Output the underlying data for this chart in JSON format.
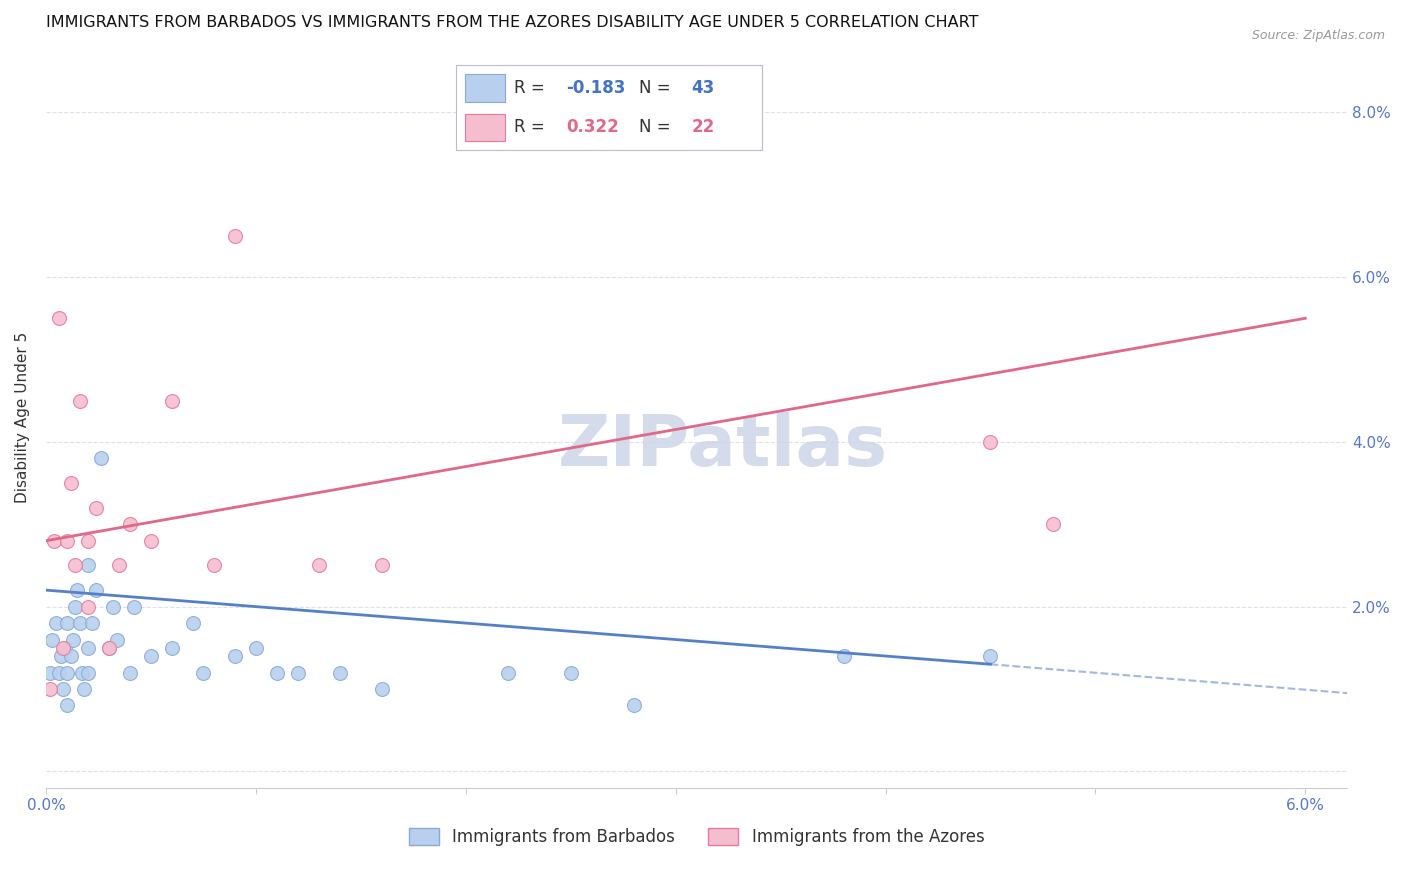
{
  "title": "IMMIGRANTS FROM BARBADOS VS IMMIGRANTS FROM THE AZORES DISABILITY AGE UNDER 5 CORRELATION CHART",
  "source": "Source: ZipAtlas.com",
  "ylabel": "Disability Age Under 5",
  "xlim": [
    0.0,
    0.062
  ],
  "ylim": [
    -0.002,
    0.088
  ],
  "yticks": [
    0.0,
    0.02,
    0.04,
    0.06,
    0.08
  ],
  "ytick_labels_right": [
    "",
    "2.0%",
    "4.0%",
    "6.0%",
    "8.0%"
  ],
  "xticks": [
    0.0,
    0.01,
    0.02,
    0.03,
    0.04,
    0.05,
    0.06
  ],
  "xtick_labels": [
    "0.0%",
    "",
    "",
    "",
    "",
    "",
    "6.0%"
  ],
  "grid_color": "#dde0ee",
  "background_color": "#ffffff",
  "watermark": "ZIPatlas",
  "series": [
    {
      "name": "Immigrants from Barbados",
      "R": -0.183,
      "N": 43,
      "color": "#b8d0ed",
      "edge_color": "#88aad8",
      "marker_size": 100,
      "x": [
        0.0002,
        0.0003,
        0.0005,
        0.0006,
        0.0007,
        0.0008,
        0.0009,
        0.001,
        0.001,
        0.001,
        0.0012,
        0.0013,
        0.0014,
        0.0015,
        0.0016,
        0.0017,
        0.0018,
        0.002,
        0.002,
        0.002,
        0.0022,
        0.0024,
        0.0026,
        0.003,
        0.0032,
        0.0034,
        0.004,
        0.0042,
        0.005,
        0.006,
        0.007,
        0.0075,
        0.009,
        0.01,
        0.011,
        0.012,
        0.014,
        0.016,
        0.022,
        0.025,
        0.028,
        0.038,
        0.045
      ],
      "y": [
        0.012,
        0.016,
        0.018,
        0.012,
        0.014,
        0.01,
        0.015,
        0.018,
        0.012,
        0.008,
        0.014,
        0.016,
        0.02,
        0.022,
        0.018,
        0.012,
        0.01,
        0.025,
        0.015,
        0.012,
        0.018,
        0.022,
        0.038,
        0.015,
        0.02,
        0.016,
        0.012,
        0.02,
        0.014,
        0.015,
        0.018,
        0.012,
        0.014,
        0.015,
        0.012,
        0.012,
        0.012,
        0.01,
        0.012,
        0.012,
        0.008,
        0.014,
        0.014
      ]
    },
    {
      "name": "Immigrants from the Azores",
      "R": 0.322,
      "N": 22,
      "color": "#f5bece",
      "edge_color": "#e878a0",
      "marker_size": 100,
      "x": [
        0.0002,
        0.0004,
        0.0006,
        0.0008,
        0.001,
        0.0012,
        0.0014,
        0.0016,
        0.002,
        0.002,
        0.0024,
        0.003,
        0.0035,
        0.004,
        0.005,
        0.006,
        0.008,
        0.009,
        0.013,
        0.016,
        0.045,
        0.048
      ],
      "y": [
        0.01,
        0.028,
        0.055,
        0.015,
        0.028,
        0.035,
        0.025,
        0.045,
        0.02,
        0.028,
        0.032,
        0.015,
        0.025,
        0.03,
        0.028,
        0.045,
        0.025,
        0.065,
        0.025,
        0.025,
        0.04,
        0.03
      ]
    }
  ],
  "barbados_trend": {
    "x_solid_start": 0.0,
    "x_solid_end": 0.045,
    "y_solid_start": 0.022,
    "y_solid_end": 0.013,
    "x_dash_start": 0.045,
    "x_dash_end": 0.062,
    "y_dash_start": 0.013,
    "y_dash_end": 0.0095,
    "color": "#5580c8"
  },
  "azores_trend": {
    "x_start": 0.0,
    "x_end": 0.06,
    "y_start": 0.028,
    "y_end": 0.055,
    "color": "#e06888"
  },
  "legend_r_color_blue": "#4472c4",
  "legend_r_color_pink": "#e06888",
  "legend_n_color": "#333333",
  "title_fontsize": 11.5,
  "axis_label_fontsize": 11,
  "tick_fontsize": 11,
  "tick_color": "#5577cc",
  "watermark_color": "#cdd5e8",
  "watermark_fontsize": 52,
  "legend_fontsize": 12
}
